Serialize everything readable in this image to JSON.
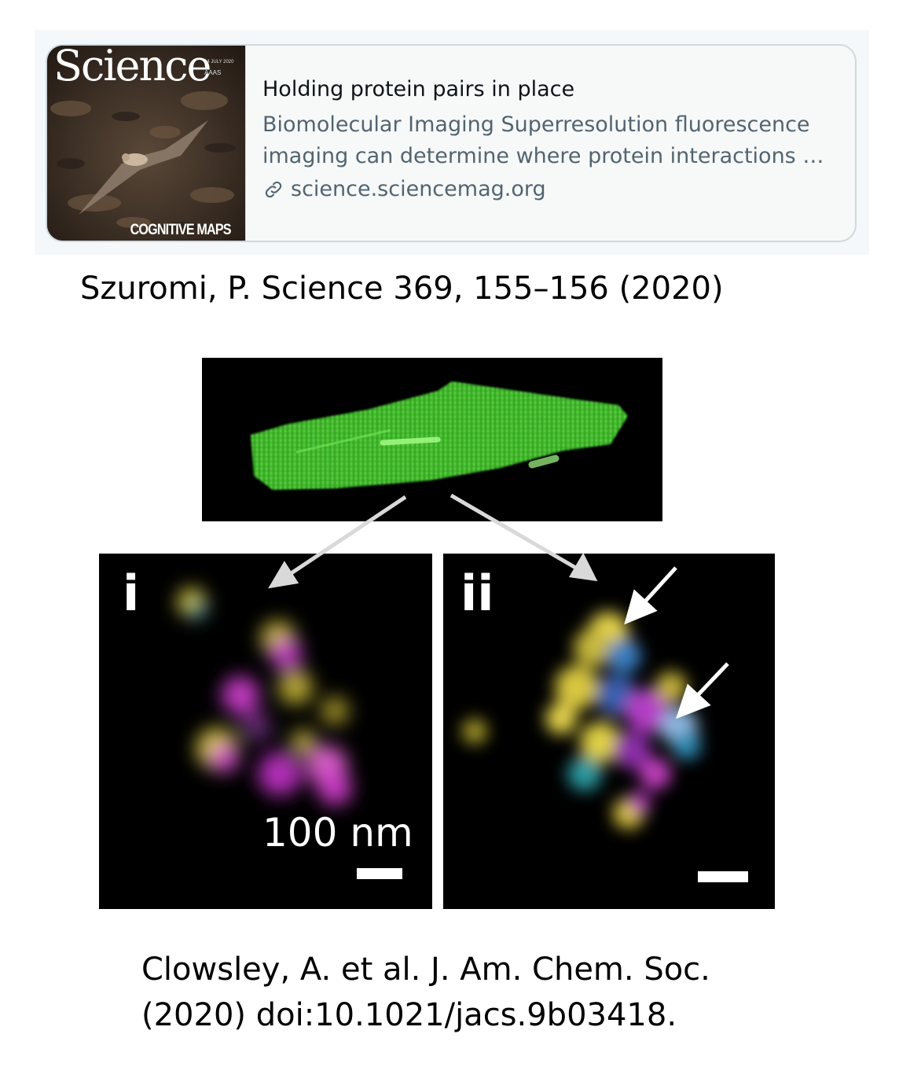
{
  "card": {
    "thumbnail_title": "Science",
    "thumbnail_date": "24 JULY 2020",
    "thumbnail_publisher": "AAAS",
    "thumbnail_caption": "COGNITIVE MAPS",
    "title": "Holding protein pairs in place",
    "description_line1": "Biomolecular Imaging Superresolution fluorescence",
    "description_line2": "imaging can determine where protein interactions …",
    "domain": "science.sciencemag.org",
    "domain_icon": "link-icon"
  },
  "citation_top": "Szuromi, P. Science 369, 155–156 (2020)",
  "figure": {
    "panel_i_label": "i",
    "panel_ii_label": "ii",
    "scale_label": "100 nm"
  },
  "citation_bottom_line1": "Clowsley, A. et al. J. Am. Chem. Soc.",
  "citation_bottom_line2": "(2020) doi:10.1021/jacs.9b03418."
}
